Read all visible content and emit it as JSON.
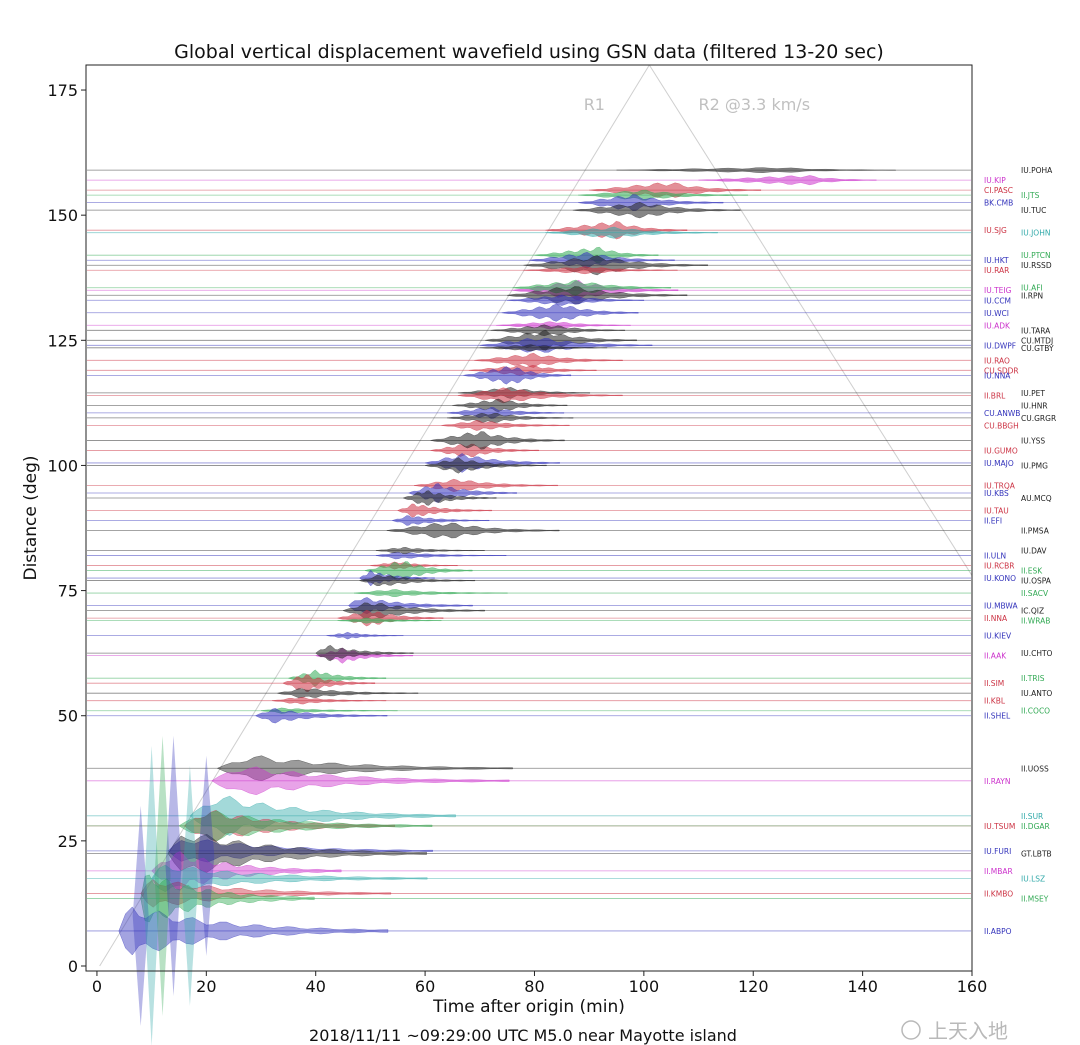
{
  "chart_data": {
    "type": "line",
    "title": "Global vertical displacement wavefield using GSN data (filtered 13-20 sec)",
    "xlabel": "Time after origin (min)",
    "ylabel": "Distance (deg)",
    "caption": "2018/11/11 ~09:29:00 UTC  M5.0 near Mayotte island",
    "xlim": [
      -2,
      160
    ],
    "ylim": [
      -1,
      180
    ],
    "xticks": [
      "0",
      "20",
      "40",
      "60",
      "80",
      "100",
      "120",
      "140",
      "160"
    ],
    "yticks": [
      "0",
      "25",
      "50",
      "75",
      "100",
      "125",
      "150",
      "175"
    ],
    "grid": false,
    "phases": [
      {
        "label": "R1",
        "x": 89,
        "y": 171
      },
      {
        "label": "R2 @3.3 km/s",
        "x": 110,
        "y": 171
      }
    ],
    "apex": {
      "x": 101,
      "y": 180
    },
    "stations": [
      {
        "name": "IU.POHA",
        "dist": 159,
        "onset": 95,
        "peak": 125,
        "color": "#222222",
        "col": 1
      },
      {
        "name": "IU.KIP",
        "dist": 157,
        "onset": 110,
        "peak": 130,
        "color": "#cc33cc",
        "col": 0
      },
      {
        "name": "CI.PASC",
        "dist": 155,
        "onset": 90,
        "peak": 105,
        "color": "#cc3344",
        "col": 0
      },
      {
        "name": "II.JTS",
        "dist": 154,
        "onset": 88,
        "peak": 100,
        "color": "#33aa55",
        "col": 1
      },
      {
        "name": "BK.CMB",
        "dist": 152.5,
        "onset": 88,
        "peak": 98,
        "color": "#3333bb",
        "col": 0
      },
      {
        "name": "IU.TUC",
        "dist": 151,
        "onset": 87,
        "peak": 100,
        "color": "#222222",
        "col": 1
      },
      {
        "name": "IU.SJG",
        "dist": 147,
        "onset": 82,
        "peak": 95,
        "color": "#cc3344",
        "col": 0
      },
      {
        "name": "IU.JOHN",
        "dist": 146.5,
        "onset": 82,
        "peak": 95,
        "color": "#33aaaa",
        "col": 1
      },
      {
        "name": "IU.PTCN",
        "dist": 142,
        "onset": 80,
        "peak": 92,
        "color": "#33aa55",
        "col": 1
      },
      {
        "name": "IU.HKT",
        "dist": 141,
        "onset": 79,
        "peak": 90,
        "color": "#3333bb",
        "col": 0
      },
      {
        "name": "IU.RSSD",
        "dist": 140,
        "onset": 78,
        "peak": 92,
        "color": "#222222",
        "col": 1
      },
      {
        "name": "IU.RAR",
        "dist": 139,
        "onset": 78,
        "peak": 90,
        "color": "#cc3344",
        "col": 0
      },
      {
        "name": "IU.TEIG",
        "dist": 135,
        "onset": 76,
        "peak": 88,
        "color": "#cc33cc",
        "col": 0
      },
      {
        "name": "IU.AFI",
        "dist": 135.5,
        "onset": 76,
        "peak": 88,
        "color": "#33aa55",
        "col": 1
      },
      {
        "name": "II.RPN",
        "dist": 134,
        "onset": 75,
        "peak": 87,
        "color": "#222222",
        "col": 1
      },
      {
        "name": "IU.CCM",
        "dist": 133,
        "onset": 75,
        "peak": 86,
        "color": "#3333bb",
        "col": 0
      },
      {
        "name": "IU.WCI",
        "dist": 130.5,
        "onset": 74,
        "peak": 85,
        "color": "#3333bb",
        "col": 0
      },
      {
        "name": "IU.ADK",
        "dist": 128,
        "onset": 73,
        "peak": 84,
        "color": "#cc33cc",
        "col": 0
      },
      {
        "name": "IU.TARA",
        "dist": 127,
        "onset": 72,
        "peak": 83,
        "color": "#222222",
        "col": 1
      },
      {
        "name": "CU.MTDJ",
        "dist": 125,
        "onset": 71,
        "peak": 82,
        "color": "#222222",
        "col": 1
      },
      {
        "name": "IU.DWPF",
        "dist": 124,
        "onset": 70,
        "peak": 81,
        "color": "#3333bb",
        "col": 0
      },
      {
        "name": "CU.GTBY",
        "dist": 123.5,
        "onset": 70,
        "peak": 80,
        "color": "#222222",
        "col": 1
      },
      {
        "name": "IU.RAO",
        "dist": 121,
        "onset": 69,
        "peak": 80,
        "color": "#cc3344",
        "col": 0
      },
      {
        "name": "CU.SDDR",
        "dist": 119,
        "onset": 68,
        "peak": 79,
        "color": "#cc3344",
        "col": 0
      },
      {
        "name": "IU.NNA",
        "dist": 118,
        "onset": 67,
        "peak": 76,
        "color": "#3333bb",
        "col": 0
      },
      {
        "name": "IU.PET",
        "dist": 114.5,
        "onset": 66,
        "peak": 76,
        "color": "#222222",
        "col": 1
      },
      {
        "name": "II.BRL",
        "dist": 114,
        "onset": 66,
        "peak": 75,
        "color": "#cc3344",
        "col": 0
      },
      {
        "name": "IU.HNR",
        "dist": 112,
        "onset": 65,
        "peak": 74,
        "color": "#222222",
        "col": 1
      },
      {
        "name": "CU.ANWB",
        "dist": 110.5,
        "onset": 64,
        "peak": 72,
        "color": "#3333bb",
        "col": 0
      },
      {
        "name": "CU.GRGR",
        "dist": 109.5,
        "onset": 64,
        "peak": 72,
        "color": "#222222",
        "col": 1
      },
      {
        "name": "CU.BBGH",
        "dist": 108,
        "onset": 63,
        "peak": 70,
        "color": "#cc3344",
        "col": 0
      },
      {
        "name": "IU.GUMO",
        "dist": 103,
        "onset": 61,
        "peak": 68,
        "color": "#cc3344",
        "col": 0
      },
      {
        "name": "IU.YSS",
        "dist": 105,
        "onset": 61,
        "peak": 70,
        "color": "#222222",
        "col": 1
      },
      {
        "name": "IU.MAJO",
        "dist": 100.5,
        "onset": 60,
        "peak": 67,
        "color": "#3333bb",
        "col": 0
      },
      {
        "name": "IU.PMG",
        "dist": 100,
        "onset": 60,
        "peak": 66,
        "color": "#222222",
        "col": 1
      },
      {
        "name": "IU.TRQA",
        "dist": 96,
        "onset": 58,
        "peak": 66,
        "color": "#cc3344",
        "col": 0
      },
      {
        "name": "IU.KBS",
        "dist": 94.5,
        "onset": 57,
        "peak": 62,
        "color": "#3333bb",
        "col": 0
      },
      {
        "name": "AU.MCQ",
        "dist": 93.5,
        "onset": 56,
        "peak": 60,
        "color": "#222222",
        "col": 1
      },
      {
        "name": "IU.TAU",
        "dist": 91,
        "onset": 55,
        "peak": 58,
        "color": "#cc3344",
        "col": 0
      },
      {
        "name": "II.EFI",
        "dist": 89,
        "onset": 54,
        "peak": 57,
        "color": "#3333bb",
        "col": 0
      },
      {
        "name": "II.PMSA",
        "dist": 87,
        "onset": 53,
        "peak": 64,
        "color": "#222222",
        "col": 1
      },
      {
        "name": "II.ULN",
        "dist": 82,
        "onset": 51,
        "peak": 55,
        "color": "#3333bb",
        "col": 0
      },
      {
        "name": "IU.DAV",
        "dist": 83,
        "onset": 51,
        "peak": 56,
        "color": "#222222",
        "col": 1
      },
      {
        "name": "IU.RCBR",
        "dist": 80,
        "onset": 50,
        "peak": 55,
        "color": "#cc3344",
        "col": 0
      },
      {
        "name": "II.ESK",
        "dist": 79,
        "onset": 49,
        "peak": 56,
        "color": "#33aa55",
        "col": 1
      },
      {
        "name": "IU.KONO",
        "dist": 77.5,
        "onset": 48,
        "peak": 50,
        "color": "#3333bb",
        "col": 0
      },
      {
        "name": "IU.OSPA",
        "dist": 77,
        "onset": 48,
        "peak": 52,
        "color": "#222222",
        "col": 1
      },
      {
        "name": "II.SACV",
        "dist": 74.5,
        "onset": 47,
        "peak": 54,
        "color": "#33aa55",
        "col": 1
      },
      {
        "name": "IU.MBWA",
        "dist": 72,
        "onset": 46,
        "peak": 48,
        "color": "#3333bb",
        "col": 0
      },
      {
        "name": "IC.QIZ",
        "dist": 71,
        "onset": 45,
        "peak": 50,
        "color": "#222222",
        "col": 1
      },
      {
        "name": "II.NNA",
        "dist": 69.5,
        "onset": 44,
        "peak": 50,
        "color": "#cc3344",
        "col": 0
      },
      {
        "name": "II.WRAB",
        "dist": 69,
        "onset": 44,
        "peak": 50,
        "color": "#33aa55",
        "col": 1
      },
      {
        "name": "IU.KIEV",
        "dist": 66,
        "onset": 42,
        "peak": 46,
        "color": "#3333bb",
        "col": 0
      },
      {
        "name": "II.AAK",
        "dist": 62,
        "onset": 40,
        "peak": 45,
        "color": "#cc33cc",
        "col": 0
      },
      {
        "name": "IU.CHTO",
        "dist": 62.5,
        "onset": 40,
        "peak": 42,
        "color": "#222222",
        "col": 1
      },
      {
        "name": "II.TRIS",
        "dist": 57.5,
        "onset": 35,
        "peak": 40,
        "color": "#33aa55",
        "col": 1
      },
      {
        "name": "II.SIM",
        "dist": 56.5,
        "onset": 34,
        "peak": 38,
        "color": "#cc3344",
        "col": 0
      },
      {
        "name": "IU.ANTO",
        "dist": 54.5,
        "onset": 33,
        "peak": 38,
        "color": "#222222",
        "col": 1
      },
      {
        "name": "II.KBL",
        "dist": 53,
        "onset": 32,
        "peak": 37,
        "color": "#cc3344",
        "col": 0
      },
      {
        "name": "II.COCO",
        "dist": 51,
        "onset": 30,
        "peak": 34,
        "color": "#33aa55",
        "col": 1
      },
      {
        "name": "II.SHEL",
        "dist": 50,
        "onset": 29,
        "peak": 32,
        "color": "#3333bb",
        "col": 0
      },
      {
        "name": "II.UOSS",
        "dist": 39.5,
        "onset": 22,
        "peak": 28,
        "color": "#222222",
        "col": 1
      },
      {
        "name": "II.RAYN",
        "dist": 37,
        "onset": 21,
        "peak": 26,
        "color": "#cc33cc",
        "col": 0
      },
      {
        "name": "II.SUR",
        "dist": 30,
        "onset": 17,
        "peak": 22,
        "color": "#33aaaa",
        "col": 1
      },
      {
        "name": "IU.TSUM",
        "dist": 28,
        "onset": 16,
        "peak": 20,
        "color": "#cc3344",
        "col": 0
      },
      {
        "name": "II.DGAR",
        "dist": 28,
        "onset": 15,
        "peak": 20,
        "color": "#33aa55",
        "col": 1
      },
      {
        "name": "IU.FURI",
        "dist": 23,
        "onset": 13,
        "peak": 16,
        "color": "#3333bb",
        "col": 0
      },
      {
        "name": "GT.LBTB",
        "dist": 22.5,
        "onset": 13,
        "peak": 16,
        "color": "#222222",
        "col": 1
      },
      {
        "name": "II.MBAR",
        "dist": 19,
        "onset": 10,
        "peak": 14,
        "color": "#cc33cc",
        "col": 0
      },
      {
        "name": "IU.LSZ",
        "dist": 17.5,
        "onset": 10,
        "peak": 12,
        "color": "#33aaaa",
        "col": 1
      },
      {
        "name": "II.KMBO",
        "dist": 14.5,
        "onset": 8,
        "peak": 10,
        "color": "#cc3344",
        "col": 0
      },
      {
        "name": "II.MSEY",
        "dist": 13.5,
        "onset": 8,
        "peak": 9,
        "color": "#33aa55",
        "col": 1
      },
      {
        "name": "II.ABPO",
        "dist": 7,
        "onset": 4,
        "peak": 6,
        "color": "#3333bb",
        "col": 0
      }
    ]
  },
  "watermark": "上天入地"
}
